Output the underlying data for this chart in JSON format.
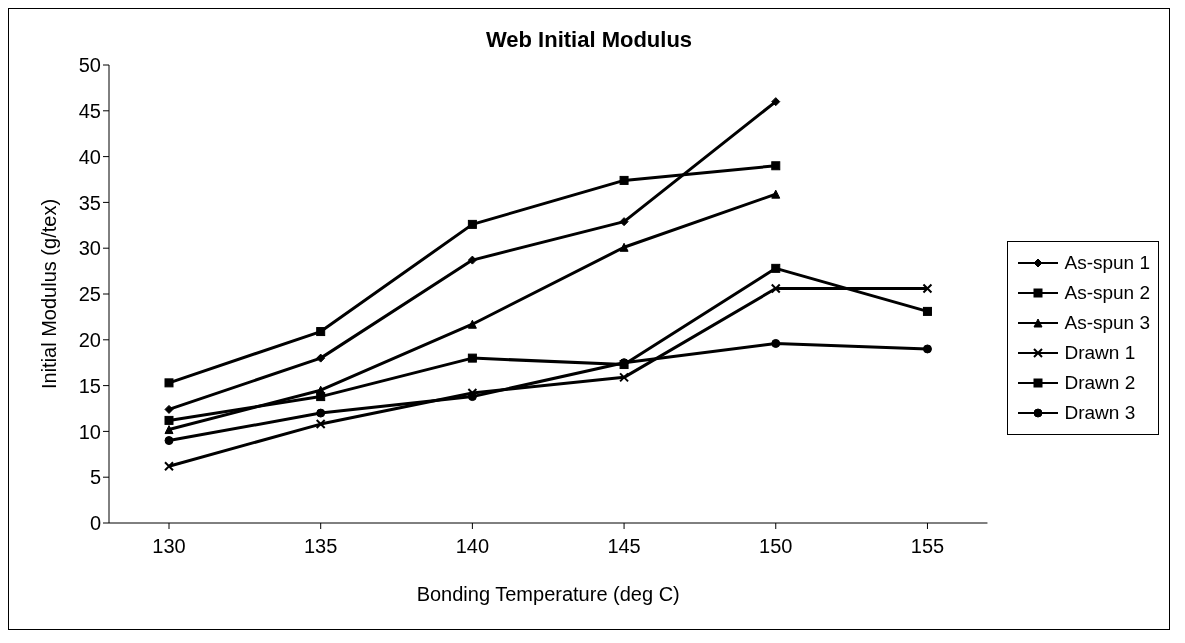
{
  "chart_data": {
    "type": "line",
    "title": "Web Initial Modulus",
    "xlabel": "Bonding Temperature (deg C)",
    "ylabel": "Initial Modulus (g/tex)",
    "categories": [
      "130",
      "135",
      "140",
      "145",
      "150",
      "155"
    ],
    "series": [
      {
        "name": "As-spun 1",
        "color": "#000000",
        "marker": "diamond",
        "values": [
          12.4,
          18.0,
          28.7,
          32.9,
          46.0,
          null
        ]
      },
      {
        "name": "As-spun 2",
        "color": "#000000",
        "marker": "square",
        "values": [
          15.3,
          20.9,
          32.6,
          37.4,
          39.0,
          null
        ]
      },
      {
        "name": "As-spun 3",
        "color": "#000000",
        "marker": "triangle",
        "values": [
          10.2,
          14.5,
          21.7,
          30.1,
          35.9,
          null
        ]
      },
      {
        "name": "Drawn 1",
        "color": "#000000",
        "marker": "cross",
        "values": [
          6.2,
          10.8,
          14.2,
          15.9,
          25.6,
          25.6
        ]
      },
      {
        "name": "Drawn 2",
        "color": "#000000",
        "marker": "square",
        "values": [
          11.2,
          13.8,
          18.0,
          17.3,
          27.8,
          23.1
        ]
      },
      {
        "name": "Drawn 3",
        "color": "#000000",
        "marker": "circle",
        "values": [
          9.0,
          12.0,
          13.8,
          17.5,
          19.6,
          19.0
        ]
      }
    ],
    "ylim": [
      0,
      50
    ],
    "yticks": [
      0,
      5,
      10,
      15,
      20,
      25,
      30,
      35,
      40,
      45,
      50
    ],
    "grid": false,
    "legend": "right",
    "line_style": "solid"
  }
}
